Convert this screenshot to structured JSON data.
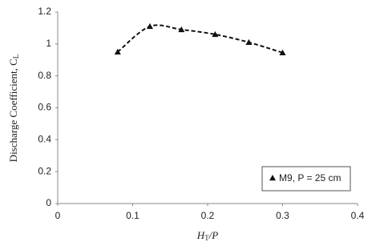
{
  "chart_data": {
    "type": "scatter",
    "x_label": [
      "H",
      "T",
      "/P"
    ],
    "y_label": [
      "Discharge Coefficient, C",
      "L"
    ],
    "x": [
      0.08,
      0.123,
      0.165,
      0.21,
      0.255,
      0.3
    ],
    "series": [
      {
        "name": "M9, P = 25 cm",
        "color": "#111111",
        "values": [
          0.95,
          1.11,
          1.09,
          1.06,
          1.01,
          0.945
        ]
      }
    ],
    "xlim": [
      0,
      0.4
    ],
    "xticks": [
      0,
      0.1,
      0.2,
      0.3,
      0.4
    ],
    "ylim": [
      0,
      1.2
    ],
    "yticks": [
      0,
      0.2,
      0.4,
      0.6,
      0.8,
      1,
      1.2
    ],
    "grid": false,
    "legend": "lower right",
    "trend_line": "dashed"
  }
}
